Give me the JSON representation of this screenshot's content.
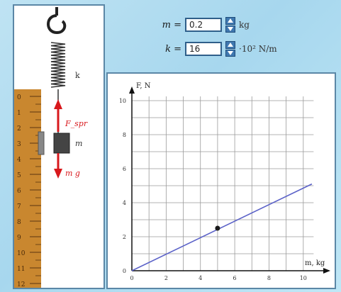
{
  "controls": {
    "mass": {
      "symbol": "m =",
      "value": "0.2",
      "unit": "kg"
    },
    "spring": {
      "symbol": "k =",
      "value": "16",
      "unit": "·10² N/m"
    }
  },
  "apparatus": {
    "spring_label": "k",
    "force_label": "F_spr",
    "mass_label": "m",
    "weight_label": "m g",
    "ruler_ticks": [
      "0",
      "1",
      "2",
      "3",
      "4",
      "5",
      "6",
      "7",
      "8",
      "9",
      "10",
      "11",
      "12"
    ]
  },
  "chart_data": {
    "type": "line",
    "ylabel": "F, N",
    "xlabel": "m, kg",
    "x_ticks": [
      "0",
      "2",
      "4",
      "6",
      "8",
      "10"
    ],
    "y_ticks": [
      "0",
      "2",
      "4",
      "6",
      "8",
      "10"
    ],
    "xlim": [
      0,
      11
    ],
    "ylim": [
      0,
      10.5
    ],
    "grid": true,
    "series": [
      {
        "x": [
          0,
          10.5
        ],
        "y": [
          0,
          5.1
        ]
      }
    ],
    "marker": {
      "x": 5,
      "y": 2.5
    }
  },
  "colors": {
    "line": "#5b62c8",
    "force_arrow": "#d8181c",
    "ruler": "#c9872f",
    "frame": "#5b87a6"
  }
}
